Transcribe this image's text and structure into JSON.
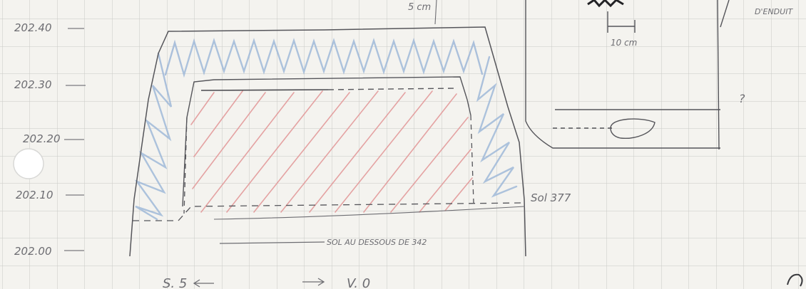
{
  "elevation_labels": [
    "202.40",
    "202.30",
    "202.20",
    "202.10",
    "202.00"
  ],
  "top_dimension": "5 cm",
  "scale_bar_label": "10 cm",
  "enduit_label": "D'ENDUIT",
  "question_mark": "?",
  "sol_label": "Sol 377",
  "below_label": "SOL AU DESSOUS DE 342",
  "bottom_left_note": "S. 5",
  "bottom_right_note": "V. 0",
  "colors": {
    "paper": "#f4f3ef",
    "grid": "#c9c9c6",
    "pencil": "#55555a",
    "blue_hatch": "#9fb8d8",
    "red_hatch": "#e39a9a"
  }
}
